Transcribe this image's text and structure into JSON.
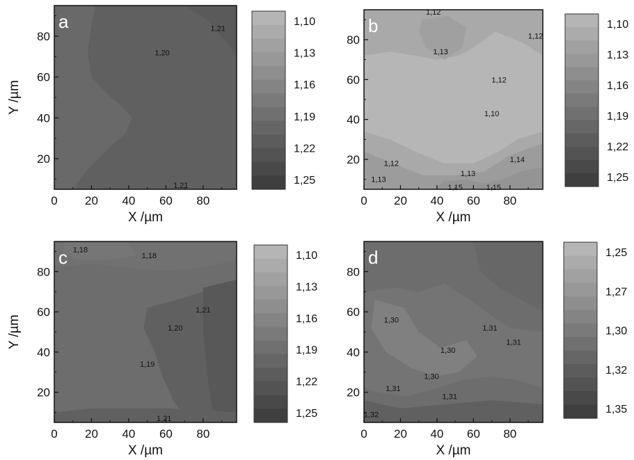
{
  "chart_data": [
    {
      "type": "heatmap",
      "panel_label": "a",
      "xlabel": "X /µm",
      "ylabel": "Y /µm",
      "xlim": [
        0,
        98
      ],
      "ylim": [
        5,
        95
      ],
      "x_ticks": [
        "0",
        "20",
        "40",
        "60",
        "80"
      ],
      "y_ticks": [
        "20",
        "40",
        "60",
        "80"
      ],
      "colorbar": {
        "labels": [
          "1,10",
          "1,13",
          "1,16",
          "1,19",
          "1,22",
          "1,25"
        ],
        "min": 1.1,
        "max": 1.25,
        "light_to_dark": true
      },
      "background_value": 1.205,
      "regions": [
        {
          "value": 1.195,
          "points": [
            [
              0,
              95
            ],
            [
              22,
              95
            ],
            [
              20,
              85
            ],
            [
              18,
              72
            ],
            [
              20,
              60
            ],
            [
              28,
              52
            ],
            [
              36,
              46
            ],
            [
              42,
              40
            ],
            [
              38,
              32
            ],
            [
              30,
              26
            ],
            [
              18,
              15
            ],
            [
              10,
              5
            ],
            [
              0,
              5
            ]
          ]
        },
        {
          "value": 1.213,
          "points": [
            [
              70,
              95
            ],
            [
              98,
              95
            ],
            [
              98,
              70
            ],
            [
              92,
              78
            ],
            [
              82,
              88
            ]
          ]
        }
      ],
      "contour_labels": [
        {
          "text": "1,21",
          "x": 88,
          "y": 84
        },
        {
          "text": "1,20",
          "x": 58,
          "y": 72
        },
        {
          "text": "1,21",
          "x": 68,
          "y": 7
        }
      ]
    },
    {
      "type": "heatmap",
      "panel_label": "b",
      "xlabel": "X /µm",
      "ylabel": "",
      "xlim": [
        0,
        98
      ],
      "ylim": [
        5,
        95
      ],
      "x_ticks": [
        "0",
        "20",
        "40",
        "60",
        "80"
      ],
      "y_ticks": [
        "20",
        "40",
        "60",
        "80"
      ],
      "colorbar": {
        "labels": [
          "1,10",
          "1,13",
          "1,16",
          "1,19",
          "1,22",
          "1,25"
        ],
        "min": 1.1,
        "max": 1.25,
        "light_to_dark": true
      },
      "background_value": 1.105,
      "regions": [
        {
          "value": 1.12,
          "points": [
            [
              0,
              95
            ],
            [
              98,
              95
            ],
            [
              98,
              72
            ],
            [
              88,
              78
            ],
            [
              72,
              84
            ],
            [
              60,
              76
            ],
            [
              52,
              72
            ],
            [
              40,
              70
            ],
            [
              28,
              72
            ],
            [
              14,
              74
            ],
            [
              0,
              72
            ]
          ]
        },
        {
          "value": 1.13,
          "points": [
            [
              32,
              90
            ],
            [
              46,
              92
            ],
            [
              56,
              86
            ],
            [
              54,
              76
            ],
            [
              44,
              70
            ],
            [
              34,
              76
            ],
            [
              30,
              84
            ]
          ]
        },
        {
          "value": 1.12,
          "points": [
            [
              0,
              34
            ],
            [
              14,
              30
            ],
            [
              28,
              24
            ],
            [
              44,
              18
            ],
            [
              60,
              18
            ],
            [
              74,
              24
            ],
            [
              84,
              30
            ],
            [
              98,
              34
            ],
            [
              98,
              5
            ],
            [
              0,
              5
            ]
          ]
        },
        {
          "value": 1.135,
          "points": [
            [
              0,
              24
            ],
            [
              16,
              18
            ],
            [
              32,
              12
            ],
            [
              50,
              12
            ],
            [
              66,
              14
            ],
            [
              80,
              22
            ],
            [
              98,
              28
            ],
            [
              98,
              5
            ],
            [
              0,
              5
            ]
          ]
        },
        {
          "value": 1.145,
          "points": [
            [
              38,
              5
            ],
            [
              44,
              9
            ],
            [
              56,
              10
            ],
            [
              66,
              8
            ],
            [
              76,
              10
            ],
            [
              86,
              14
            ],
            [
              98,
              16
            ],
            [
              98,
              5
            ]
          ]
        }
      ],
      "contour_labels": [
        {
          "text": "1,12",
          "x": 38,
          "y": 94
        },
        {
          "text": "1,12",
          "x": 94,
          "y": 82
        },
        {
          "text": "1,13",
          "x": 42,
          "y": 74
        },
        {
          "text": "1,12",
          "x": 74,
          "y": 60
        },
        {
          "text": "1,10",
          "x": 70,
          "y": 43
        },
        {
          "text": "1,14",
          "x": 84,
          "y": 20
        },
        {
          "text": "1,12",
          "x": 15,
          "y": 18
        },
        {
          "text": "1,13",
          "x": 57,
          "y": 13
        },
        {
          "text": "1,13",
          "x": 8,
          "y": 10
        },
        {
          "text": "1,15",
          "x": 50,
          "y": 6
        },
        {
          "text": "1,15",
          "x": 71,
          "y": 6
        }
      ]
    },
    {
      "type": "heatmap",
      "panel_label": "c",
      "xlabel": "X /µm",
      "ylabel": "Y /µm",
      "xlim": [
        0,
        98
      ],
      "ylim": [
        5,
        95
      ],
      "x_ticks": [
        "0",
        "20",
        "40",
        "60",
        "80"
      ],
      "y_ticks": [
        "20",
        "40",
        "60",
        "80"
      ],
      "colorbar": {
        "labels": [
          "1,10",
          "1,13",
          "1,16",
          "1,19",
          "1,22",
          "1,25"
        ],
        "min": 1.1,
        "max": 1.25,
        "light_to_dark": true
      },
      "background_value": 1.19,
      "regions": [
        {
          "value": 1.185,
          "points": [
            [
              0,
              95
            ],
            [
              98,
              95
            ],
            [
              98,
              86
            ],
            [
              80,
              82
            ],
            [
              60,
              80
            ],
            [
              40,
              82
            ],
            [
              20,
              84
            ],
            [
              0,
              82
            ]
          ]
        },
        {
          "value": 1.18,
          "points": [
            [
              6,
              95
            ],
            [
              40,
              95
            ],
            [
              44,
              88
            ],
            [
              30,
              86
            ],
            [
              12,
              86
            ],
            [
              4,
              90
            ]
          ]
        },
        {
          "value": 1.205,
          "points": [
            [
              50,
              62
            ],
            [
              66,
              66
            ],
            [
              80,
              70
            ],
            [
              98,
              74
            ],
            [
              98,
              5
            ],
            [
              72,
              5
            ],
            [
              64,
              16
            ],
            [
              58,
              28
            ],
            [
              54,
              40
            ],
            [
              48,
              52
            ]
          ]
        },
        {
          "value": 1.215,
          "points": [
            [
              80,
              72
            ],
            [
              98,
              76
            ],
            [
              98,
              5
            ],
            [
              86,
              5
            ],
            [
              82,
              30
            ],
            [
              80,
              50
            ]
          ]
        },
        {
          "value": 1.205,
          "points": [
            [
              0,
              5
            ],
            [
              98,
              5
            ],
            [
              98,
              10
            ],
            [
              60,
              12
            ],
            [
              20,
              12
            ],
            [
              0,
              10
            ]
          ]
        }
      ],
      "contour_labels": [
        {
          "text": "1,18",
          "x": 14,
          "y": 91
        },
        {
          "text": "1,18",
          "x": 51,
          "y": 88
        },
        {
          "text": "1,21",
          "x": 80,
          "y": 61
        },
        {
          "text": "1,20",
          "x": 65,
          "y": 52
        },
        {
          "text": "1,19",
          "x": 50,
          "y": 34
        },
        {
          "text": "1,21",
          "x": 59,
          "y": 7
        }
      ]
    },
    {
      "type": "heatmap",
      "panel_label": "d",
      "xlabel": "X /µm",
      "ylabel": "",
      "xlim": [
        0,
        98
      ],
      "ylim": [
        5,
        95
      ],
      "x_ticks": [
        "0",
        "20",
        "40",
        "60",
        "80"
      ],
      "y_ticks": [
        "20",
        "40",
        "60",
        "80"
      ],
      "colorbar": {
        "labels": [
          "1,25",
          "1,27",
          "1,30",
          "1,32",
          "1,35"
        ],
        "min": 1.25,
        "max": 1.35,
        "light_to_dark": true
      },
      "background_value": 1.31,
      "regions": [
        {
          "value": 1.305,
          "points": [
            [
              0,
              70
            ],
            [
              16,
              72
            ],
            [
              30,
              70
            ],
            [
              44,
              74
            ],
            [
              58,
              66
            ],
            [
              70,
              58
            ],
            [
              80,
              52
            ],
            [
              98,
              50
            ],
            [
              98,
              22
            ],
            [
              84,
              26
            ],
            [
              70,
              28
            ],
            [
              54,
              26
            ],
            [
              40,
              22
            ],
            [
              24,
              18
            ],
            [
              8,
              20
            ],
            [
              0,
              22
            ]
          ]
        },
        {
          "value": 1.295,
          "points": [
            [
              6,
              66
            ],
            [
              22,
              62
            ],
            [
              30,
              50
            ],
            [
              42,
              42
            ],
            [
              56,
              46
            ],
            [
              62,
              38
            ],
            [
              52,
              30
            ],
            [
              40,
              28
            ],
            [
              26,
              32
            ],
            [
              12,
              40
            ],
            [
              4,
              52
            ]
          ]
        },
        {
          "value": 1.32,
          "points": [
            [
              0,
              5
            ],
            [
              98,
              5
            ],
            [
              98,
              14
            ],
            [
              70,
              16
            ],
            [
              44,
              14
            ],
            [
              20,
              12
            ],
            [
              0,
              16
            ]
          ]
        },
        {
          "value": 1.315,
          "points": [
            [
              60,
              95
            ],
            [
              98,
              95
            ],
            [
              98,
              60
            ],
            [
              86,
              66
            ],
            [
              74,
              72
            ],
            [
              64,
              80
            ]
          ]
        }
      ],
      "contour_labels": [
        {
          "text": "1,30",
          "x": 15,
          "y": 56
        },
        {
          "text": "1,31",
          "x": 69,
          "y": 52
        },
        {
          "text": "1,31",
          "x": 82,
          "y": 45
        },
        {
          "text": "1,30",
          "x": 46,
          "y": 41
        },
        {
          "text": "1,30",
          "x": 37,
          "y": 28
        },
        {
          "text": "1,31",
          "x": 16,
          "y": 22
        },
        {
          "text": "1,31",
          "x": 47,
          "y": 18
        },
        {
          "text": "1,32",
          "x": 4,
          "y": 9
        }
      ]
    }
  ]
}
